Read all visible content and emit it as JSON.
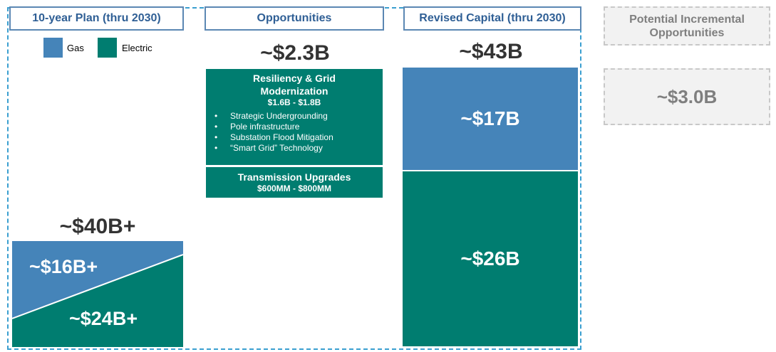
{
  "headers": {
    "plan": "10-year Plan (thru 2030)",
    "opportunities": "Opportunities",
    "revised": "Revised Capital (thru 2030)",
    "potential_line1": "Potential Incremental",
    "potential_line2": "Opportunities"
  },
  "legend": [
    {
      "label": "Gas",
      "color": "#4584b9"
    },
    {
      "label": "Electric",
      "color": "#007d70"
    }
  ],
  "plan": {
    "total": "~$40B+",
    "gas": "~$16B+",
    "electric": "~$24B+"
  },
  "opportunities": {
    "total": "~$2.3B",
    "resiliency": {
      "title_line1": "Resiliency & Grid",
      "title_line2": "Modernization",
      "range": "$1.6B - $1.8B",
      "items": [
        "Strategic Undergrounding",
        "Pole infrastructure",
        "Substation Flood Mitigation",
        "“Smart Grid” Technology"
      ],
      "bullet": "•"
    },
    "transmission": {
      "title": "Transmission Upgrades",
      "range": "$600MM - $800MM"
    }
  },
  "revised": {
    "total": "~$43B",
    "gas": "~$17B",
    "electric": "~$26B"
  },
  "potential": {
    "value": "~$3.0B"
  },
  "colors": {
    "gas": "#4584b9",
    "electric": "#007d70",
    "header_text": "#2f5f95",
    "dash_outline": "#3a9fd0"
  }
}
